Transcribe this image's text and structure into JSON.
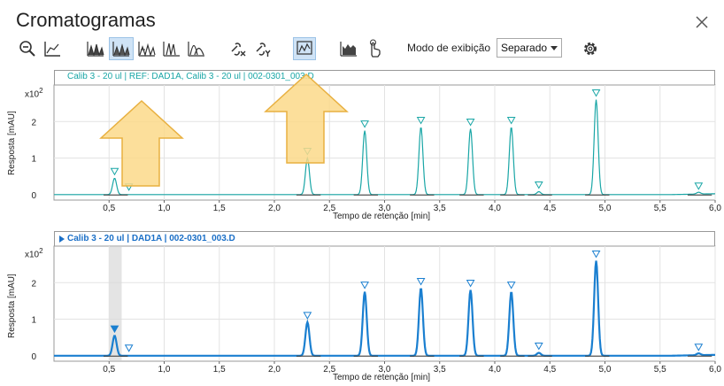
{
  "window": {
    "title": "Cromatogramas"
  },
  "toolbar": {
    "icons": [
      "zoom-out-icon",
      "baseline-icon",
      "stacked-peaks-icon",
      "overlay-peaks-icon",
      "peaks-outline-icon",
      "multi-trace-icon",
      "area-icon",
      "link-x-icon",
      "link-y-icon",
      "chart-select-icon",
      "signal-bars-icon",
      "hand-touch-icon"
    ],
    "mode_label": "Modo de exibição",
    "mode_value": "Separado"
  },
  "panels": [
    {
      "header": "Calib 3 - 20 ul | REF: DAD1A, Calib 3 - 20 ul | 002-0301_003.D",
      "color": "#19a6a6",
      "ylabel": "Resposta [mAU]",
      "xlabel": "Tempo de retenção [min]",
      "yexp": "x10",
      "yexp_pow": "2"
    },
    {
      "header": "Calib 3 - 20 ul | DAD1A | 002-0301_003.D",
      "color": "#1a6fc7",
      "ylabel": "Resposta [mAU]",
      "xlabel": "Tempo de retenção [min]",
      "yexp": "x10",
      "yexp_pow": "2"
    }
  ],
  "chart_data": [
    {
      "type": "line",
      "title": "Calib 3 - 20 ul | REF: DAD1A, Calib 3 - 20 ul | 002-0301_003.D",
      "xlabel": "Tempo de retenção [min]",
      "ylabel": "Resposta [mAU]",
      "xlim": [
        0,
        6.0
      ],
      "ylim": [
        -0.15,
        3.0
      ],
      "xticks": [
        0.5,
        1.0,
        1.5,
        2.0,
        2.5,
        3.0,
        3.5,
        4.0,
        4.5,
        5.0,
        5.5,
        6.0
      ],
      "xtick_labels": [
        "0,5",
        "1,0",
        "1,5",
        "2,0",
        "2,5",
        "3,0",
        "3,5",
        "4,0",
        "4,5",
        "5,0",
        "5,5",
        "6,0"
      ],
      "yticks": [
        0,
        1,
        2
      ],
      "ytick_labels": [
        "0",
        "1",
        "2"
      ],
      "y_scale_label": "x10^2",
      "color": "#19a6a6",
      "peaks": [
        {
          "x": 0.55,
          "y": 0.45
        },
        {
          "x": 2.3,
          "y": 1.0
        },
        {
          "x": 2.82,
          "y": 1.75
        },
        {
          "x": 3.33,
          "y": 1.85
        },
        {
          "x": 3.78,
          "y": 1.8
        },
        {
          "x": 4.15,
          "y": 1.85
        },
        {
          "x": 4.4,
          "y": 0.08
        },
        {
          "x": 4.92,
          "y": 2.6
        },
        {
          "x": 5.85,
          "y": 0.05
        }
      ]
    },
    {
      "type": "line",
      "title": "Calib 3 - 20 ul | DAD1A | 002-0301_003.D",
      "xlabel": "Tempo de retenção [min]",
      "ylabel": "Resposta [mAU]",
      "xlim": [
        0,
        6.0
      ],
      "ylim": [
        -0.15,
        3.0
      ],
      "xticks": [
        0.5,
        1.0,
        1.5,
        2.0,
        2.5,
        3.0,
        3.5,
        4.0,
        4.5,
        5.0,
        5.5,
        6.0
      ],
      "xtick_labels": [
        "0,5",
        "1,0",
        "1,5",
        "2,0",
        "2,5",
        "3,0",
        "3,5",
        "4,0",
        "4,5",
        "5,0",
        "5,5",
        "6,0"
      ],
      "yticks": [
        0,
        1,
        2
      ],
      "ytick_labels": [
        "0",
        "1",
        "2"
      ],
      "y_scale_label": "x10^2",
      "color": "#1a7fd0",
      "peaks": [
        {
          "x": 0.55,
          "y": 0.55
        },
        {
          "x": 2.3,
          "y": 0.92
        },
        {
          "x": 2.82,
          "y": 1.75
        },
        {
          "x": 3.33,
          "y": 1.85
        },
        {
          "x": 3.78,
          "y": 1.8
        },
        {
          "x": 4.15,
          "y": 1.75
        },
        {
          "x": 4.4,
          "y": 0.08
        },
        {
          "x": 4.92,
          "y": 2.6
        },
        {
          "x": 5.85,
          "y": 0.05
        }
      ]
    }
  ]
}
